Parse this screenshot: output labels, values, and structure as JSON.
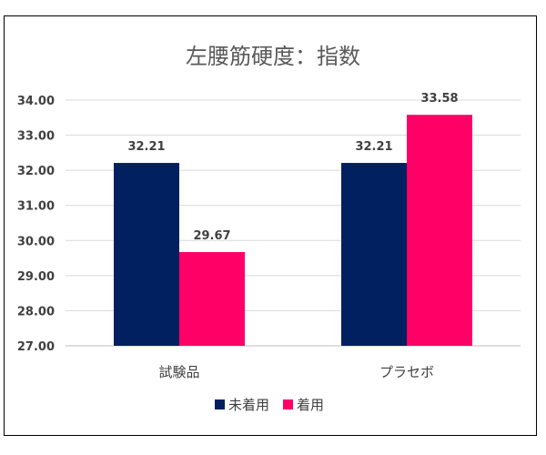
{
  "chart_data": {
    "type": "bar",
    "title": "左腰筋硬度：指数",
    "xlabel": "",
    "ylabel": "",
    "categories": [
      "試験品",
      "プラセボ"
    ],
    "series": [
      {
        "name": "未着用",
        "color": "#002060",
        "values": [
          32.21,
          32.21
        ]
      },
      {
        "name": "着用",
        "color": "#FF0066",
        "values": [
          29.67,
          33.58
        ]
      }
    ],
    "ylim": [
      27,
      34
    ],
    "yticks": [
      "27.00",
      "28.00",
      "29.00",
      "30.00",
      "31.00",
      "32.00",
      "33.00",
      "34.00"
    ],
    "data_labels": [
      [
        "32.21",
        "32.21"
      ],
      [
        "29.67",
        "33.58"
      ]
    ],
    "grid": true,
    "legend": "bottom"
  }
}
